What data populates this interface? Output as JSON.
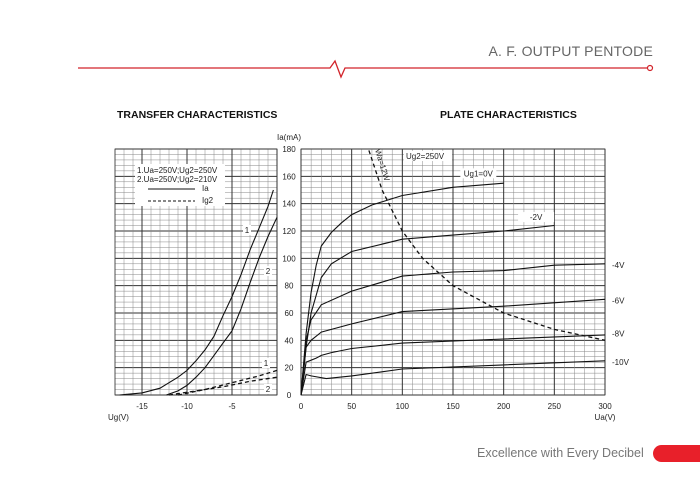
{
  "header": {
    "title": "A. F. OUTPUT PENTODE",
    "accent_color": "#d2232a"
  },
  "footer": {
    "tagline": "Excellence with Every Decibel",
    "accent_color": "#e8202a"
  },
  "chart_data": [
    {
      "type": "line",
      "title": "TRANSFER CHARACTERISTICS",
      "xlabel": "Ug(V)",
      "ylabel": "Ia(mA)",
      "xlim": [
        -18,
        0
      ],
      "ylim": [
        0,
        180
      ],
      "xticks": [
        -15,
        -10,
        -5
      ],
      "yticks": [
        0,
        20,
        40,
        60,
        80,
        100,
        120,
        140,
        160,
        180
      ],
      "grid": true,
      "legend": {
        "position": "top-left",
        "lines": [
          "1.Ua=250V;Ug2=250V",
          "2.Ua=250V;Ug2=210V"
        ],
        "entries": [
          {
            "label": "Ia",
            "style": "solid"
          },
          {
            "label": "Ig2",
            "style": "dashed"
          }
        ]
      },
      "series": [
        {
          "name": "1",
          "kind": "Ia",
          "style": "solid",
          "points": [
            [
              -17.5,
              0
            ],
            [
              -15,
              1.5
            ],
            [
              -13,
              5
            ],
            [
              -12,
              9
            ],
            [
              -11,
              13
            ],
            [
              -10,
              18
            ],
            [
              -9,
              25
            ],
            [
              -8,
              33
            ],
            [
              -7,
              43
            ],
            [
              -6,
              58
            ],
            [
              -5,
              72
            ],
            [
              -4,
              88
            ],
            [
              -3,
              106
            ],
            [
              -2,
              122
            ],
            [
              -1,
              138
            ],
            [
              -0.4,
              150
            ]
          ]
        },
        {
          "name": "2",
          "kind": "Ia",
          "style": "solid",
          "points": [
            [
              -12.3,
              0
            ],
            [
              -11,
              3
            ],
            [
              -10,
              7
            ],
            [
              -9,
              13
            ],
            [
              -8,
              20
            ],
            [
              -7,
              29
            ],
            [
              -6,
              38
            ],
            [
              -5,
              47
            ],
            [
              -4,
              63
            ],
            [
              -3,
              82
            ],
            [
              -2,
              100
            ],
            [
              -1,
              116
            ],
            [
              0,
              130
            ]
          ]
        },
        {
          "name": "1",
          "kind": "Ig2",
          "style": "dashed",
          "points": [
            [
              -11,
              0
            ],
            [
              -8,
              4
            ],
            [
              -5,
              9
            ],
            [
              -2,
              14
            ],
            [
              0,
              18
            ]
          ]
        },
        {
          "name": "2",
          "kind": "Ig2",
          "style": "dashed",
          "points": [
            [
              -12,
              0
            ],
            [
              -9,
              3
            ],
            [
              -6,
              6
            ],
            [
              -3,
              10
            ],
            [
              0,
              13
            ]
          ]
        }
      ]
    },
    {
      "type": "line",
      "title": "PLATE CHARACTERISTICS",
      "xlabel": "Ua(V)",
      "ylabel": "Ia(mA)",
      "xlim": [
        0,
        300
      ],
      "ylim": [
        0,
        180
      ],
      "xticks": [
        0,
        50,
        100,
        150,
        200,
        250,
        300
      ],
      "yticks": [
        0,
        20,
        40,
        60,
        80,
        100,
        120,
        140,
        160,
        180
      ],
      "grid": true,
      "annotations": [
        "Ug2=250V",
        "Wa=12W"
      ],
      "series": [
        {
          "name": "Ug1=0V",
          "style": "solid",
          "points": [
            [
              0,
              0
            ],
            [
              5,
              45
            ],
            [
              10,
              75
            ],
            [
              15,
              95
            ],
            [
              20,
              109
            ],
            [
              30,
              119
            ],
            [
              40,
              126
            ],
            [
              50,
              132
            ],
            [
              70,
              139
            ],
            [
              100,
              146
            ],
            [
              150,
              152
            ],
            [
              200,
              155
            ]
          ]
        },
        {
          "name": "-2V",
          "style": "solid",
          "points": [
            [
              0,
              0
            ],
            [
              5,
              35
            ],
            [
              10,
              60
            ],
            [
              20,
              86
            ],
            [
              30,
              96
            ],
            [
              50,
              105
            ],
            [
              100,
              114
            ],
            [
              150,
              117
            ],
            [
              200,
              120
            ],
            [
              250,
              124
            ]
          ]
        },
        {
          "name": "-4V",
          "style": "solid",
          "points": [
            [
              0,
              0
            ],
            [
              5,
              40
            ],
            [
              10,
              55
            ],
            [
              20,
              66
            ],
            [
              50,
              76
            ],
            [
              100,
              87
            ],
            [
              150,
              90
            ],
            [
              200,
              91
            ],
            [
              250,
              95
            ],
            [
              300,
              96
            ]
          ]
        },
        {
          "name": "-6V",
          "style": "solid",
          "points": [
            [
              0,
              0
            ],
            [
              5,
              35
            ],
            [
              10,
              40
            ],
            [
              20,
              46
            ],
            [
              50,
              52
            ],
            [
              100,
              61
            ],
            [
              200,
              65
            ],
            [
              300,
              70
            ]
          ]
        },
        {
          "name": "-8V",
          "style": "solid",
          "points": [
            [
              0,
              0
            ],
            [
              5,
              24
            ],
            [
              15,
              27
            ],
            [
              20,
              29
            ],
            [
              30,
              31
            ],
            [
              50,
              34
            ],
            [
              100,
              38
            ],
            [
              200,
              41
            ],
            [
              300,
              44
            ]
          ]
        },
        {
          "name": "-10V",
          "style": "solid",
          "points": [
            [
              0,
              0
            ],
            [
              5,
              15
            ],
            [
              10,
              14
            ],
            [
              25,
              12
            ],
            [
              50,
              14
            ],
            [
              100,
              19
            ],
            [
              200,
              22
            ],
            [
              300,
              25
            ]
          ]
        },
        {
          "name": "Wa=12W",
          "style": "dashed",
          "points": [
            [
              67,
              179
            ],
            [
              80,
              150
            ],
            [
              100,
              120
            ],
            [
              120,
              100
            ],
            [
              150,
              80
            ],
            [
              200,
              60
            ],
            [
              250,
              48
            ],
            [
              300,
              40
            ]
          ]
        }
      ]
    }
  ]
}
